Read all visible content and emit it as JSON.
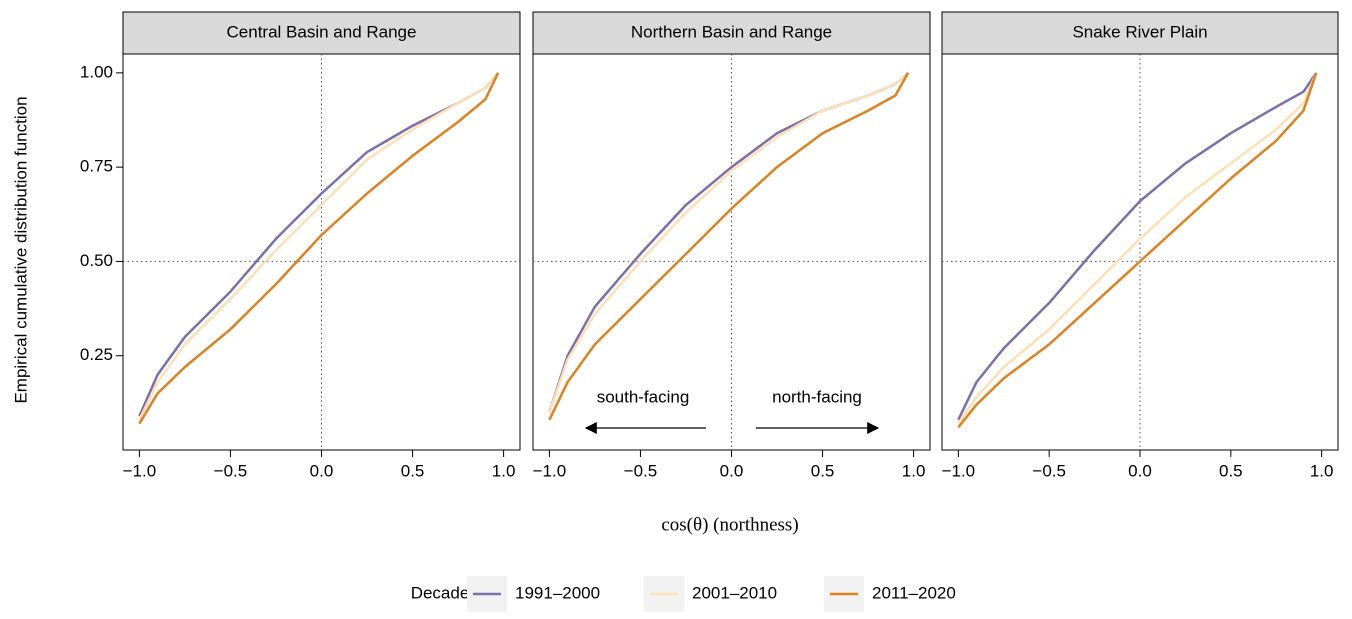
{
  "chart_data": [
    {
      "type": "line",
      "title": "Central Basin and Range",
      "y_label": "Empirical cumulative distribution function",
      "x_label": "cos(θ) (northness)",
      "legend_title": "Decade",
      "x": [
        -1,
        -0.9,
        -0.75,
        -0.5,
        -0.25,
        0,
        0.25,
        0.5,
        0.75,
        0.9,
        0.97
      ],
      "series": [
        {
          "name": "1991–2000",
          "color": "#7b6fae",
          "values": [
            0.09,
            0.2,
            0.3,
            0.42,
            0.56,
            0.68,
            0.79,
            0.86,
            0.92,
            0.96,
            1.0
          ]
        },
        {
          "name": "2001–2010",
          "color": "#fde0b5",
          "values": [
            0.08,
            0.18,
            0.28,
            0.4,
            0.53,
            0.65,
            0.77,
            0.85,
            0.92,
            0.96,
            1.0
          ]
        },
        {
          "name": "2011–2020",
          "color": "#e0801f",
          "values": [
            0.07,
            0.15,
            0.22,
            0.32,
            0.44,
            0.57,
            0.68,
            0.78,
            0.87,
            0.93,
            1.0
          ]
        }
      ],
      "xlim": [
        -1.09,
        1.09
      ],
      "ylim": [
        0,
        1.05
      ],
      "xticks": [
        {
          "value": -1,
          "label": "−1.0"
        },
        {
          "value": -0.5,
          "label": "−0.5"
        },
        {
          "value": 0,
          "label": "0.0"
        },
        {
          "value": 0.5,
          "label": "0.5"
        },
        {
          "value": 1,
          "label": "1.0"
        }
      ],
      "yticks": [
        {
          "value": 0.25,
          "label": "0.25"
        },
        {
          "value": 0.5,
          "label": "0.50"
        },
        {
          "value": 0.75,
          "label": "0.75"
        },
        {
          "value": 1,
          "label": "1.00"
        }
      ],
      "vline": 0,
      "hline": 0.5
    },
    {
      "type": "line",
      "title": "Northern Basin and Range",
      "annotations": [
        "south-facing",
        "north-facing"
      ],
      "x": [
        -1,
        -0.9,
        -0.75,
        -0.5,
        -0.25,
        0,
        0.25,
        0.5,
        0.75,
        0.9,
        0.97
      ],
      "series": [
        {
          "name": "1991–2000",
          "color": "#7b6fae",
          "values": [
            0.1,
            0.25,
            0.38,
            0.52,
            0.65,
            0.75,
            0.84,
            0.9,
            0.94,
            0.97,
            1.0
          ]
        },
        {
          "name": "2001–2010",
          "color": "#fde0b5",
          "values": [
            0.1,
            0.24,
            0.36,
            0.5,
            0.63,
            0.74,
            0.83,
            0.9,
            0.94,
            0.97,
            1.0
          ]
        },
        {
          "name": "2011–2020",
          "color": "#e0801f",
          "values": [
            0.08,
            0.18,
            0.28,
            0.4,
            0.52,
            0.64,
            0.75,
            0.84,
            0.9,
            0.94,
            1.0
          ]
        }
      ],
      "xlim": [
        -1.09,
        1.09
      ],
      "ylim": [
        0,
        1.05
      ],
      "xticks": [
        {
          "value": -1,
          "label": "−1.0"
        },
        {
          "value": -0.5,
          "label": "−0.5"
        },
        {
          "value": 0,
          "label": "0.0"
        },
        {
          "value": 0.5,
          "label": "0.5"
        },
        {
          "value": 1,
          "label": "1.0"
        }
      ],
      "vline": 0,
      "hline": 0.5
    },
    {
      "type": "line",
      "title": "Snake River Plain",
      "x": [
        -1,
        -0.9,
        -0.75,
        -0.5,
        -0.25,
        0,
        0.25,
        0.5,
        0.75,
        0.9,
        0.97
      ],
      "series": [
        {
          "name": "1991–2000",
          "color": "#7b6fae",
          "values": [
            0.08,
            0.18,
            0.27,
            0.39,
            0.53,
            0.66,
            0.76,
            0.84,
            0.91,
            0.95,
            1.0
          ]
        },
        {
          "name": "2001–2010",
          "color": "#fde0b5",
          "values": [
            0.07,
            0.14,
            0.22,
            0.32,
            0.44,
            0.56,
            0.67,
            0.76,
            0.85,
            0.92,
            1.0
          ]
        },
        {
          "name": "2011–2020",
          "color": "#e0801f",
          "values": [
            0.06,
            0.12,
            0.19,
            0.28,
            0.39,
            0.5,
            0.61,
            0.72,
            0.82,
            0.9,
            1.0
          ]
        }
      ],
      "xlim": [
        -1.09,
        1.09
      ],
      "ylim": [
        0,
        1.05
      ],
      "xticks": [
        {
          "value": -1,
          "label": "−1.0"
        },
        {
          "value": -0.5,
          "label": "−0.5"
        },
        {
          "value": 0,
          "label": "0.0"
        },
        {
          "value": 0.5,
          "label": "0.5"
        },
        {
          "value": 1,
          "label": "1.0"
        }
      ],
      "vline": 0,
      "hline": 0.5
    }
  ]
}
